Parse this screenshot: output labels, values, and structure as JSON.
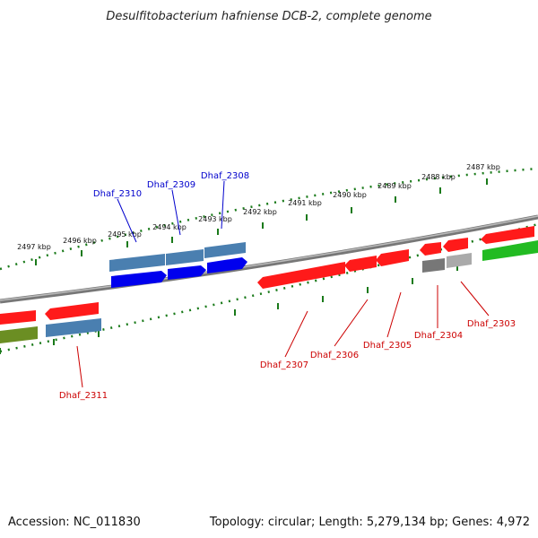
{
  "title": "Desulfitobacterium hafniense DCB-2, complete genome",
  "footer": {
    "accession": "Accession: NC_011830",
    "summary": "Topology: circular; Length: 5,279,134 bp; Genes: 4,972"
  },
  "scale_ticks": [
    "2497 kbp",
    "2496 kbp",
    "2495 kbp",
    "2494 kbp",
    "2493 kbp",
    "2492 kbp",
    "2491 kbp",
    "2490 kbp",
    "2489 kbp",
    "2488 kbp",
    "2487 kbp"
  ],
  "gene_labels": {
    "top": [
      {
        "text": "Dhaf_2310",
        "color": "#0000cc"
      },
      {
        "text": "Dhaf_2309",
        "color": "#0000cc"
      },
      {
        "text": "Dhaf_2308",
        "color": "#0000cc"
      }
    ],
    "bottom": [
      {
        "text": "Dhaf_2311",
        "color": "#cc0000"
      },
      {
        "text": "Dhaf_2307",
        "color": "#cc0000"
      },
      {
        "text": "Dhaf_2306",
        "color": "#cc0000"
      },
      {
        "text": "Dhaf_2305",
        "color": "#cc0000"
      },
      {
        "text": "Dhaf_2304",
        "color": "#cc0000"
      },
      {
        "text": "Dhaf_2303",
        "color": "#cc0000"
      }
    ]
  },
  "colors": {
    "backbone": "#888888",
    "ticks": "#1a7a1a",
    "gene_red": "#ff1a1a",
    "gene_blue": "#0000ee",
    "gene_steel": "#4a7fb0",
    "gene_olive": "#6b8e23",
    "gene_green": "#22bb22",
    "gene_gray": "#777777",
    "gene_lightgray": "#aaaaaa"
  }
}
